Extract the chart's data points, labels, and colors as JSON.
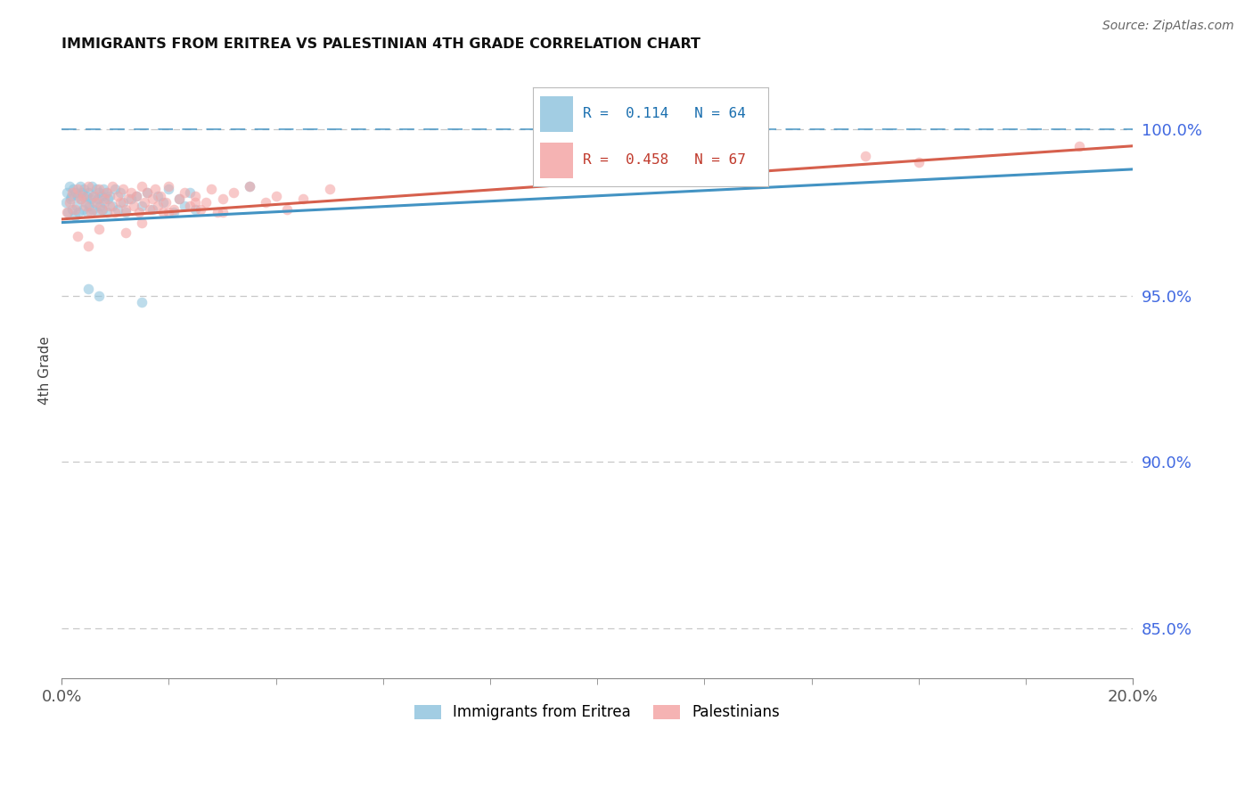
{
  "title": "IMMIGRANTS FROM ERITREA VS PALESTINIAN 4TH GRADE CORRELATION CHART",
  "source": "Source: ZipAtlas.com",
  "ylabel": "4th Grade",
  "ylabel_right_ticks": [
    85.0,
    90.0,
    95.0,
    100.0
  ],
  "xmin": 0.0,
  "xmax": 20.0,
  "ymin": 83.5,
  "ymax": 102.0,
  "legend_r_eritrea": "R =  0.114",
  "legend_n_eritrea": "N = 64",
  "legend_r_palest": "R =  0.458",
  "legend_n_palest": "N = 67",
  "blue_color": "#92c5de",
  "pink_color": "#f4a6a6",
  "blue_line_color": "#4393c3",
  "pink_line_color": "#d6604d",
  "scatter_alpha": 0.6,
  "scatter_size": 70,
  "eritrea_x": [
    0.08,
    0.1,
    0.12,
    0.14,
    0.16,
    0.18,
    0.2,
    0.22,
    0.24,
    0.26,
    0.28,
    0.3,
    0.32,
    0.34,
    0.36,
    0.38,
    0.4,
    0.42,
    0.44,
    0.46,
    0.48,
    0.5,
    0.52,
    0.54,
    0.56,
    0.58,
    0.6,
    0.62,
    0.64,
    0.66,
    0.68,
    0.7,
    0.72,
    0.74,
    0.76,
    0.78,
    0.8,
    0.82,
    0.84,
    0.86,
    0.9,
    0.95,
    1.0,
    1.05,
    1.1,
    1.15,
    1.2,
    1.3,
    1.4,
    1.5,
    1.6,
    1.7,
    1.8,
    1.9,
    2.0,
    2.1,
    2.2,
    2.3,
    2.4,
    2.5,
    0.5,
    0.7,
    1.5,
    3.5
  ],
  "eritrea_y": [
    97.8,
    98.1,
    97.5,
    98.3,
    97.9,
    98.0,
    97.6,
    98.2,
    97.4,
    98.1,
    97.7,
    98.0,
    97.5,
    98.3,
    97.9,
    98.1,
    97.6,
    98.2,
    97.8,
    98.0,
    97.5,
    98.1,
    97.7,
    97.9,
    98.3,
    97.6,
    98.0,
    97.8,
    98.2,
    97.5,
    97.9,
    98.1,
    97.7,
    98.0,
    97.6,
    98.2,
    97.8,
    98.1,
    97.5,
    97.9,
    98.0,
    97.7,
    98.2,
    97.6,
    98.1,
    97.8,
    97.5,
    97.9,
    98.0,
    97.7,
    98.1,
    97.6,
    98.0,
    97.8,
    98.2,
    97.5,
    97.9,
    97.7,
    98.1,
    97.6,
    95.2,
    95.0,
    94.8,
    98.3
  ],
  "palest_x": [
    0.1,
    0.15,
    0.2,
    0.25,
    0.3,
    0.35,
    0.4,
    0.45,
    0.5,
    0.55,
    0.6,
    0.65,
    0.7,
    0.75,
    0.8,
    0.85,
    0.9,
    0.95,
    1.0,
    1.05,
    1.1,
    1.15,
    1.2,
    1.25,
    1.3,
    1.35,
    1.4,
    1.45,
    1.5,
    1.55,
    1.6,
    1.65,
    1.7,
    1.75,
    1.8,
    1.85,
    1.9,
    1.95,
    2.0,
    2.1,
    2.2,
    2.3,
    2.4,
    2.5,
    2.6,
    2.7,
    2.8,
    2.9,
    3.0,
    3.2,
    3.5,
    3.8,
    4.0,
    4.2,
    4.5,
    5.0,
    0.3,
    0.5,
    0.7,
    1.2,
    1.5,
    2.0,
    2.5,
    3.0,
    15.0,
    16.0,
    19.0
  ],
  "palest_y": [
    97.5,
    97.8,
    98.1,
    97.6,
    98.2,
    97.9,
    98.0,
    97.7,
    98.3,
    97.5,
    98.0,
    97.8,
    98.2,
    97.6,
    97.9,
    98.1,
    97.7,
    98.3,
    97.5,
    98.0,
    97.8,
    98.2,
    97.6,
    97.9,
    98.1,
    97.7,
    98.0,
    97.5,
    98.3,
    97.8,
    98.1,
    97.6,
    97.9,
    98.2,
    97.7,
    98.0,
    97.5,
    97.8,
    98.3,
    97.6,
    97.9,
    98.1,
    97.7,
    98.0,
    97.6,
    97.8,
    98.2,
    97.5,
    97.9,
    98.1,
    98.3,
    97.8,
    98.0,
    97.6,
    97.9,
    98.2,
    96.8,
    96.5,
    97.0,
    96.9,
    97.2,
    97.5,
    97.8,
    97.5,
    99.2,
    99.0,
    99.5
  ],
  "blue_trendline": [
    97.2,
    98.8
  ],
  "pink_trendline": [
    97.3,
    99.5
  ],
  "dashed_y": 100.0
}
